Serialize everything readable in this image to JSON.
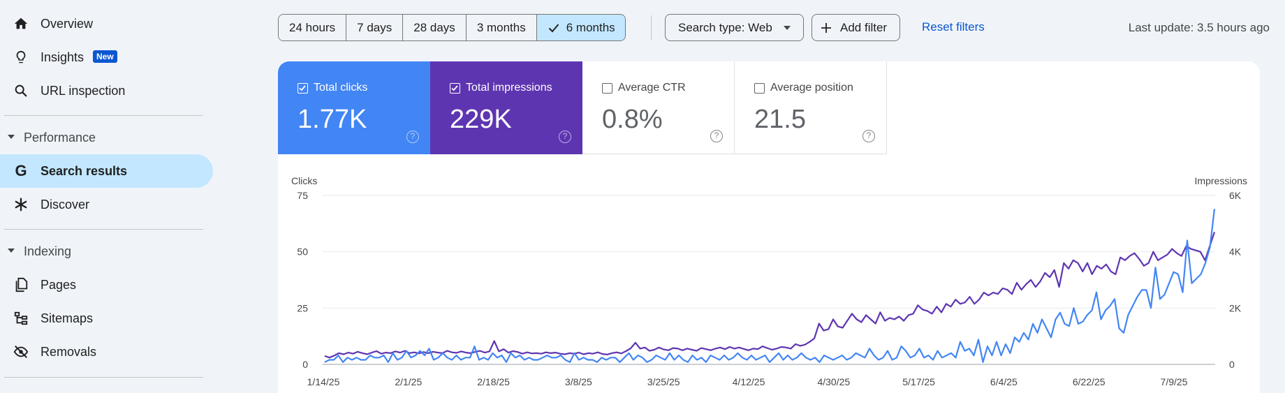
{
  "sidebar": {
    "items": [
      {
        "label": "Overview",
        "icon": "home-icon"
      },
      {
        "label": "Insights",
        "icon": "lightbulb-icon",
        "badge": "New"
      },
      {
        "label": "URL inspection",
        "icon": "search-icon"
      }
    ],
    "performance": {
      "label": "Performance",
      "items": [
        {
          "label": "Search results",
          "icon": "google-g-icon"
        },
        {
          "label": "Discover",
          "icon": "asterisk-icon"
        }
      ]
    },
    "indexing": {
      "label": "Indexing",
      "items": [
        {
          "label": "Pages",
          "icon": "pages-icon"
        },
        {
          "label": "Sitemaps",
          "icon": "sitemap-icon"
        },
        {
          "label": "Removals",
          "icon": "eye-off-icon"
        }
      ]
    }
  },
  "toolbar": {
    "ranges": [
      "24 hours",
      "7 days",
      "28 days",
      "3 months",
      "6 months"
    ],
    "selected_range": "6 months",
    "search_type": "Search type: Web",
    "add_filter": "Add filter",
    "reset": "Reset filters",
    "last_update": "Last update: 3.5 hours ago"
  },
  "metrics": [
    {
      "label": "Total clicks",
      "value": "1.77K",
      "checked": true,
      "color": "#4285f4"
    },
    {
      "label": "Total impressions",
      "value": "229K",
      "checked": true,
      "color": "#5e35b1"
    },
    {
      "label": "Average CTR",
      "value": "0.8%",
      "checked": false
    },
    {
      "label": "Average position",
      "value": "21.5",
      "checked": false
    }
  ],
  "chart_data": {
    "type": "line",
    "ylabel_left": "Clicks",
    "ylabel_right": "Impressions",
    "y_left_ticks": [
      "75",
      "50",
      "25",
      "0"
    ],
    "y_right_ticks": [
      "6K",
      "4K",
      "2K",
      "0"
    ],
    "ylim_left": [
      0,
      75
    ],
    "ylim_right": [
      0,
      6000
    ],
    "x_ticks": [
      "1/14/25",
      "2/1/25",
      "2/18/25",
      "3/8/25",
      "3/25/25",
      "4/12/25",
      "4/30/25",
      "5/17/25",
      "6/4/25",
      "6/22/25",
      "7/9/25"
    ],
    "series": [
      {
        "name": "Clicks",
        "color": "#4285f4",
        "axis": "left",
        "values": [
          1,
          2,
          2,
          4,
          1,
          3,
          2,
          3,
          2,
          2,
          4,
          3,
          3,
          4,
          1,
          5,
          2,
          3,
          6,
          3,
          4,
          6,
          4,
          7,
          2,
          3,
          5,
          3,
          2,
          4,
          2,
          3,
          3,
          8,
          2,
          3,
          2,
          5,
          3,
          4,
          1,
          5,
          3,
          4,
          2,
          3,
          2,
          2,
          3,
          4,
          3,
          3,
          4,
          2,
          1,
          5,
          2,
          3,
          2,
          2,
          1,
          3,
          2,
          3,
          3,
          1,
          3,
          5,
          2,
          4,
          3,
          1,
          2,
          4,
          3,
          2,
          5,
          2,
          4,
          2,
          1,
          4,
          2,
          3,
          1,
          4,
          3,
          2,
          4,
          2,
          3,
          5,
          3,
          2,
          4,
          2,
          3,
          4,
          1,
          3,
          5,
          2,
          4,
          2,
          3,
          5,
          3,
          2,
          3,
          1,
          4,
          3,
          2,
          3,
          4,
          2,
          3,
          5,
          4,
          3,
          7,
          4,
          2,
          3,
          6,
          2,
          3,
          8,
          6,
          3,
          4,
          7,
          3,
          4,
          2,
          6,
          3,
          4,
          5,
          3,
          10,
          6,
          7,
          4,
          11,
          1,
          8,
          4,
          10,
          4,
          9,
          5,
          12,
          10,
          14,
          11,
          18,
          14,
          20,
          16,
          12,
          20,
          23,
          18,
          17,
          25,
          18,
          19,
          22,
          24,
          32,
          20,
          24,
          26,
          29,
          16,
          14,
          22,
          26,
          30,
          33,
          33,
          25,
          43,
          29,
          31,
          36,
          41,
          40,
          32,
          55,
          36,
          38,
          40,
          45,
          52,
          69
        ]
      },
      {
        "name": "Impressions",
        "color": "#5e35b1",
        "axis": "right",
        "values": [
          300,
          240,
          310,
          400,
          360,
          420,
          380,
          450,
          400,
          360,
          420,
          470,
          380,
          420,
          400,
          460,
          420,
          480,
          400,
          430,
          390,
          440,
          400,
          450,
          420,
          400,
          480,
          430,
          410,
          460,
          420,
          400,
          450,
          480,
          420,
          460,
          830,
          460,
          540,
          420,
          470,
          440,
          380,
          430,
          390,
          400,
          380,
          430,
          400,
          420,
          380,
          360,
          400,
          380,
          420,
          360,
          400,
          380,
          430,
          370,
          350,
          400,
          430,
          390,
          470,
          570,
          770,
          560,
          600,
          480,
          520,
          600,
          530,
          500,
          580,
          560,
          500,
          560,
          520,
          480,
          580,
          540,
          500,
          560,
          600,
          540,
          620,
          560,
          600,
          550,
          500,
          560,
          540,
          640,
          580,
          520,
          560,
          620,
          600,
          560,
          720,
          660,
          700,
          800,
          920,
          1450,
          1200,
          1250,
          1600,
          1350,
          1300,
          1550,
          1800,
          1600,
          1500,
          1750,
          1600,
          1450,
          1850,
          1550,
          1650,
          1600,
          1700,
          1550,
          1750,
          1800,
          2100,
          1950,
          1900,
          1800,
          2050,
          1850,
          2150,
          2050,
          2300,
          2150,
          2200,
          2400,
          2150,
          2300,
          2550,
          2450,
          2550,
          2500,
          2700,
          2650,
          2500,
          2900,
          2650,
          2850,
          3000,
          2750,
          2950,
          3250,
          3100,
          3350,
          2750,
          3600,
          3400,
          3700,
          3600,
          3300,
          3600,
          3200,
          3500,
          3400,
          3550,
          3300,
          3200,
          3800,
          3700,
          3850,
          3950,
          3750,
          3500,
          3600,
          4000,
          3700,
          3800,
          3900,
          4100,
          3950,
          3850,
          4200,
          4100,
          4050,
          4000,
          3700,
          4200,
          4700
        ]
      }
    ]
  }
}
